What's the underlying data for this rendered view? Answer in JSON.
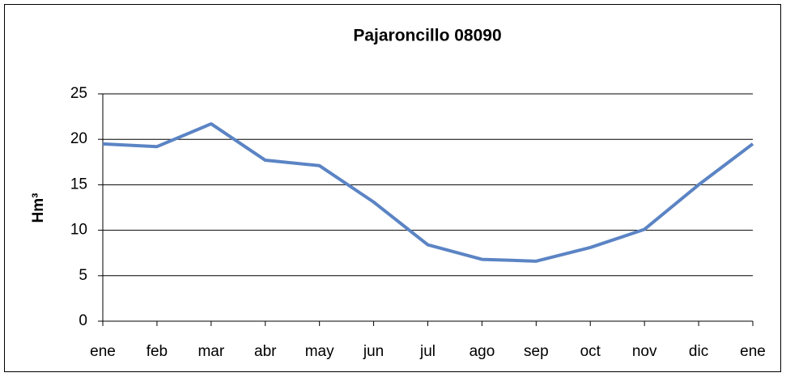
{
  "chart_data": {
    "type": "line",
    "title": "Pajaroncillo 08090",
    "y_label": "Hm³",
    "categories": [
      "ene",
      "feb",
      "mar",
      "abr",
      "may",
      "jun",
      "jul",
      "ago",
      "sep",
      "oct",
      "nov",
      "dic",
      "ene"
    ],
    "series": [
      {
        "name": "Pajaroncillo 08090",
        "color": "#5b84c4",
        "values": [
          19.5,
          19.2,
          21.7,
          17.7,
          17.1,
          13.1,
          8.4,
          6.8,
          6.6,
          8.1,
          10.1,
          15.0,
          19.5
        ]
      }
    ],
    "ylim": [
      0,
      25
    ],
    "yticks": [
      0,
      5,
      10,
      15,
      20,
      25
    ],
    "grid": true
  }
}
